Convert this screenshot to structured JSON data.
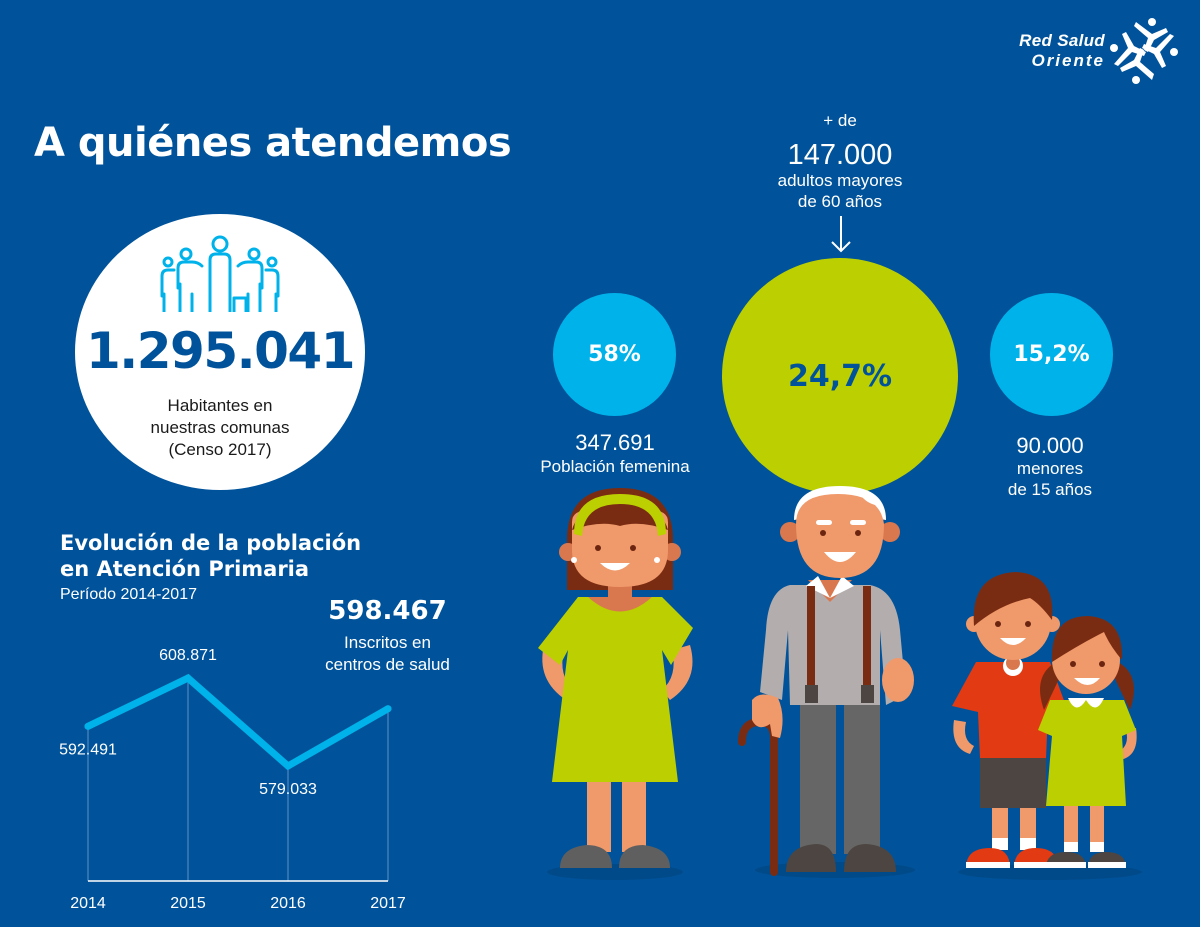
{
  "brand": {
    "name_line1": "Red Salud",
    "name_line2": "Oriente",
    "logo_icon": "four-people-star-icon"
  },
  "title": "A quiénes atendemos",
  "population": {
    "icon": "family-icon",
    "value": "1.295.041",
    "desc_line1": "Habitantes en",
    "desc_line2": "nuestras comunas",
    "desc_line3": "(Censo 2017)"
  },
  "evolution": {
    "title_line1": "Evolución de la población",
    "title_line2": "en Atención Primaria",
    "subtitle": "Período 2014-2017",
    "highlight_value": "598.467",
    "highlight_desc_line1": "Inscritos en",
    "highlight_desc_line2": "centros de salud"
  },
  "chart_data": {
    "type": "line",
    "title": "Evolución de la población en Atención Primaria",
    "subtitle": "Período 2014-2017",
    "xlabel": "",
    "ylabel": "",
    "categories": [
      "2014",
      "2015",
      "2016",
      "2017"
    ],
    "series": [
      {
        "name": "Inscritos en centros de salud",
        "values": [
          592491,
          608871,
          579033,
          598467
        ]
      }
    ],
    "data_labels": [
      "592.491",
      "608.871",
      "579.033",
      "598.467"
    ],
    "ylim": [
      540000,
      615000
    ],
    "grid": "vertical",
    "line_color": "#00b2ea"
  },
  "stats": {
    "female": {
      "percent": "58%",
      "count": "347.691",
      "label": "Población femenina",
      "color": "#00b2ea"
    },
    "elderly": {
      "prefix": "+ de",
      "count": "147.000",
      "label_line1": "adultos mayores",
      "label_line2": "de 60 años",
      "percent": "24,7%",
      "color": "#bccf00"
    },
    "children": {
      "percent": "15,2%",
      "count": "90.000",
      "label_line1": "menores",
      "label_line2": "de 15 años",
      "color": "#00b2ea"
    }
  },
  "illustrations": {
    "woman": "woman-illustration",
    "old_man": "old-man-with-cane-illustration",
    "children": "boy-and-girl-illustration"
  },
  "colors": {
    "background": "#00539a",
    "accent_blue": "#00b2ea",
    "accent_green": "#bccf00"
  }
}
